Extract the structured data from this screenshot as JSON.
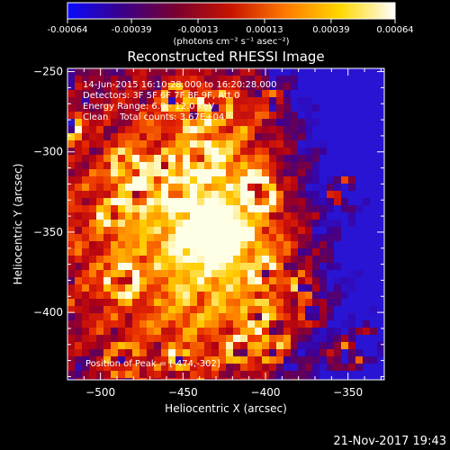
{
  "chart_data": {
    "type": "heatmap",
    "title": "Reconstructed RHESSI Image",
    "xlabel": "Heliocentric X (arcsec)",
    "ylabel": "Heliocentric Y (arcsec)",
    "xlim": [
      -520,
      -328
    ],
    "ylim": [
      -442,
      -248
    ],
    "x_ticks": [
      "-500",
      "-450",
      "-400",
      "-350"
    ],
    "y_ticks": [
      "-250",
      "-300",
      "-350",
      "-400"
    ],
    "colorbar": {
      "min": -0.00064,
      "max": 0.00064,
      "tick_labels": [
        "-0.00064",
        "-0.00039",
        "-0.00013",
        "0.00013",
        "0.00039",
        "0.00064"
      ],
      "unit_label": "(photons cm⁻² s⁻¹ asec⁻²)",
      "colors": [
        "#0a0aff",
        "#3a0088",
        "#7a0030",
        "#c81400",
        "#ff7a00",
        "#ffd800",
        "#ffffff"
      ]
    },
    "annotations": [
      "14-Jun-2015 16:10:28.000 to 16:20:28.000",
      "Detectors: 3F 5F 6F 7F 8F 9F, Att 0",
      "Energy Range: 6.0 - 12.0 keV",
      "Clean    Total counts: 3.67E+04"
    ],
    "peak_label": "Position of Peak = [-474,-302]",
    "peak_position": [
      -474,
      -302
    ],
    "main_source_center": [
      -432,
      -352
    ],
    "background_color": "#000000",
    "axis_color": "#ffffff"
  },
  "footer": {
    "timestamp": "21-Nov-2017 19:43"
  }
}
